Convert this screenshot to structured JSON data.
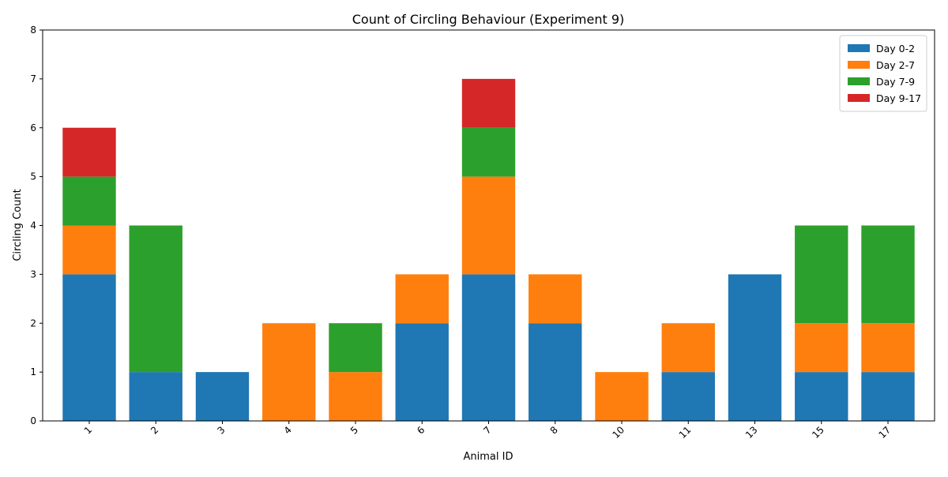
{
  "chart_data": {
    "type": "bar",
    "stacked": true,
    "title": "Count of Circling Behaviour (Experiment 9)",
    "xlabel": "Animal ID",
    "ylabel": "Circling Count",
    "categories": [
      "1",
      "2",
      "3",
      "4",
      "5",
      "6",
      "7",
      "8",
      "10",
      "11",
      "13",
      "15",
      "17"
    ],
    "ylim": [
      0,
      8
    ],
    "yticks": [
      0,
      1,
      2,
      3,
      4,
      5,
      6,
      7,
      8
    ],
    "grid": false,
    "legend_position": "top-right",
    "series": [
      {
        "name": "Day 0-2",
        "color": "#1f77b4",
        "values": [
          3,
          1,
          1,
          0,
          0,
          2,
          3,
          2,
          0,
          1,
          3,
          1,
          1
        ]
      },
      {
        "name": "Day 2-7",
        "color": "#ff7f0e",
        "values": [
          1,
          0,
          0,
          2,
          1,
          1,
          2,
          1,
          1,
          1,
          0,
          1,
          1
        ]
      },
      {
        "name": "Day 7-9",
        "color": "#2ca02c",
        "values": [
          1,
          3,
          0,
          0,
          1,
          0,
          1,
          0,
          0,
          0,
          0,
          2,
          2
        ]
      },
      {
        "name": "Day 9-17",
        "color": "#d62728",
        "values": [
          1,
          0,
          0,
          0,
          0,
          0,
          1,
          0,
          0,
          0,
          0,
          0,
          0
        ]
      }
    ]
  }
}
